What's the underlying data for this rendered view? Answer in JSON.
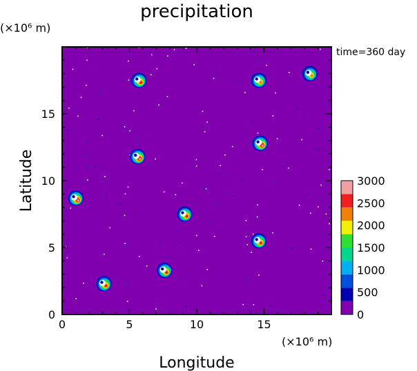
{
  "chart_data": {
    "type": "heatmap",
    "title": "precipitation",
    "time_label": "time=360 day",
    "xlabel": "Longitude",
    "ylabel": "Latitude",
    "x_unit": "(×10⁶ m)",
    "y_unit": "(×10⁶ m)",
    "xlim": [
      0,
      20
    ],
    "ylim": [
      0,
      20
    ],
    "x_ticks": [
      0,
      5,
      10,
      15
    ],
    "y_ticks": [
      0,
      5,
      10,
      15
    ],
    "background_color": "#8000b0",
    "colorbar": {
      "levels": [
        0,
        500,
        1000,
        1500,
        2000,
        2500,
        3000
      ],
      "colors": [
        "#8000b0",
        "#0000b0",
        "#0050e0",
        "#00b0f0",
        "#00d890",
        "#30e030",
        "#f0f000",
        "#f08000",
        "#f02020",
        "#f0a0a0"
      ]
    },
    "storms": [
      {
        "x": 5.7,
        "y": 17.5,
        "peak": 2500
      },
      {
        "x": 14.6,
        "y": 17.5,
        "peak": 2300
      },
      {
        "x": 18.4,
        "y": 18.0,
        "peak": 2300
      },
      {
        "x": 5.6,
        "y": 11.8,
        "peak": 3000
      },
      {
        "x": 14.7,
        "y": 12.8,
        "peak": 3000
      },
      {
        "x": 1.0,
        "y": 8.7,
        "peak": 3000
      },
      {
        "x": 9.1,
        "y": 7.5,
        "peak": 2800
      },
      {
        "x": 14.6,
        "y": 5.5,
        "peak": 2800
      },
      {
        "x": 7.6,
        "y": 3.3,
        "peak": 2500
      },
      {
        "x": 3.1,
        "y": 2.3,
        "peak": 2500
      }
    ]
  }
}
